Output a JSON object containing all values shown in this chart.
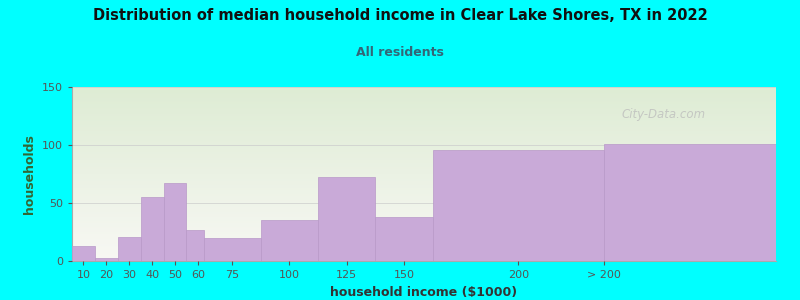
{
  "title": "Distribution of median household income in Clear Lake Shores, TX in 2022",
  "subtitle": "All residents",
  "xlabel": "household income ($1000)",
  "ylabel": "households",
  "background_color": "#00FFFF",
  "bar_color": "#c9aad8",
  "bar_edge_color": "#b898c8",
  "watermark": "City-Data.com",
  "bin_lefts": [
    5,
    15,
    25,
    35,
    45,
    55,
    62.5,
    87.5,
    112.5,
    137.5,
    162.5,
    237.5
  ],
  "bin_rights": [
    15,
    25,
    35,
    45,
    55,
    62.5,
    87.5,
    112.5,
    137.5,
    162.5,
    237.5,
    312.5
  ],
  "values": [
    13,
    3,
    21,
    55,
    67,
    27,
    20,
    35,
    72,
    38,
    96,
    101
  ],
  "xtick_positions": [
    10,
    20,
    30,
    40,
    50,
    60,
    75,
    100,
    125,
    150,
    200,
    237.5
  ],
  "xtick_labels": [
    "10",
    "20",
    "30",
    "40",
    "50",
    "60",
    "75",
    "100",
    "125",
    "150",
    "200",
    "> 200"
  ],
  "xlim": [
    5,
    312.5
  ],
  "ylim": [
    0,
    150
  ],
  "yticks": [
    0,
    50,
    100,
    150
  ],
  "plot_grad_top": "#deecd4",
  "plot_grad_bottom": "#f8f8f4",
  "title_color": "#111111",
  "subtitle_color": "#336677",
  "ylabel_color": "#336633",
  "xlabel_color": "#333333"
}
